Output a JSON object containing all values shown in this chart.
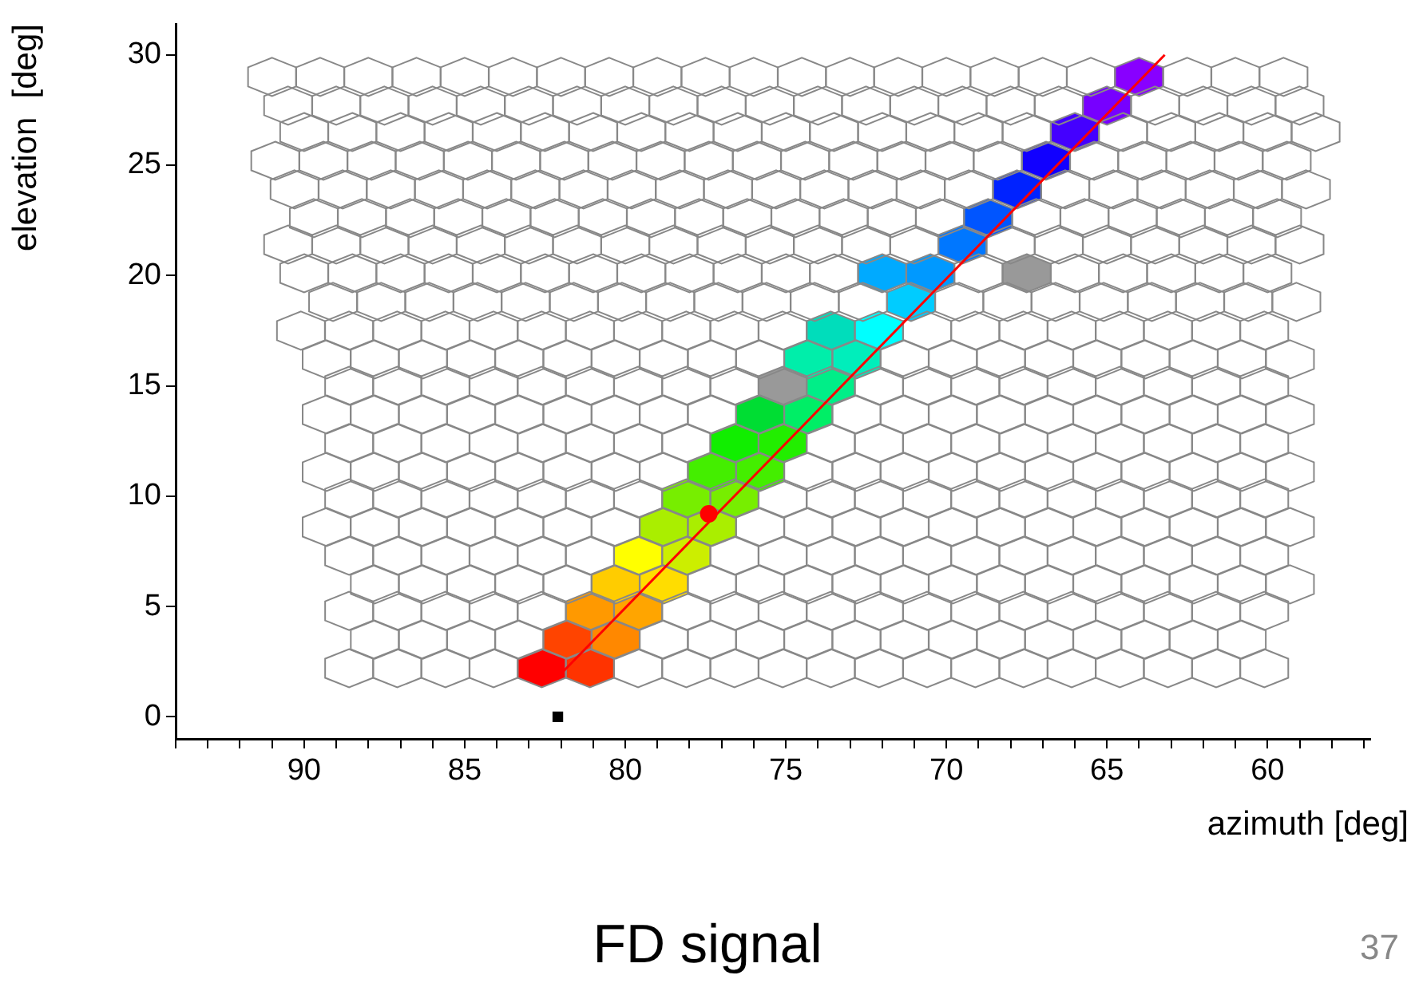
{
  "chart_data": {
    "type": "scatter",
    "xlabel": "azimuth  [deg]",
    "ylabel": "elevation  [deg]",
    "xlim": [
      94,
      56.8
    ],
    "ylim": [
      -1,
      31.4
    ],
    "xticks": [
      {
        "value": 94,
        "label": null
      },
      {
        "value": 93,
        "label": null
      },
      {
        "value": 92,
        "label": null
      },
      {
        "value": 91,
        "label": null
      },
      90,
      {
        "value": 89,
        "label": null
      },
      {
        "value": 88,
        "label": null
      },
      {
        "value": 87,
        "label": null
      },
      {
        "value": 86,
        "label": null
      },
      85,
      {
        "value": 84,
        "label": null
      },
      {
        "value": 83,
        "label": null
      },
      {
        "value": 82,
        "label": null
      },
      {
        "value": 81,
        "label": null
      },
      80,
      {
        "value": 79,
        "label": null
      },
      {
        "value": 78,
        "label": null
      },
      {
        "value": 77,
        "label": null
      },
      {
        "value": 76,
        "label": null
      },
      75,
      {
        "value": 74,
        "label": null
      },
      {
        "value": 73,
        "label": null
      },
      {
        "value": 72,
        "label": null
      },
      {
        "value": 71,
        "label": null
      },
      70,
      {
        "value": 69,
        "label": null
      },
      {
        "value": 68,
        "label": null
      },
      {
        "value": 67,
        "label": null
      },
      {
        "value": 66,
        "label": null
      },
      65,
      {
        "value": 64,
        "label": null
      },
      {
        "value": 63,
        "label": null
      },
      {
        "value": 62,
        "label": null
      },
      {
        "value": 61,
        "label": null
      },
      60,
      {
        "value": 59,
        "label": null
      },
      {
        "value": 58,
        "label": null
      },
      {
        "value": 57,
        "label": null
      }
    ],
    "yticks": [
      0,
      5,
      10,
      15,
      20,
      25,
      30
    ],
    "grid": false,
    "legend": false,
    "series": [
      {
        "type": "scatter",
        "color": "#ffffff",
        "x": [
          88.6,
          87.1,
          85.6,
          84.1,
          79.6,
          78.1,
          76.6,
          75.1,
          73.6,
          72.1,
          70.6,
          69.1,
          67.6,
          66.1,
          64.6,
          63.1,
          61.6,
          60.1,
          87.8,
          86.3,
          84.8,
          83.3,
          78.8,
          77.3,
          75.8,
          74.3,
          72.8,
          71.3,
          69.8,
          68.3,
          66.8,
          65.3,
          63.8,
          62.3,
          60.8,
          88.6,
          87.1,
          85.6,
          84.1,
          82.6,
          78.1,
          76.6,
          75.1,
          73.6,
          72.1,
          70.6,
          69.1,
          67.6,
          66.1,
          64.6,
          63.1,
          61.6,
          60.1,
          87.8,
          86.3,
          84.8,
          83.3,
          81.8,
          77.3,
          75.8,
          74.3,
          72.8,
          71.3,
          69.8,
          68.3,
          66.8,
          65.3,
          63.8,
          62.3,
          60.8,
          59.3,
          88.6,
          87.1,
          85.6,
          84.1,
          82.6,
          81.1,
          76.6,
          75.1,
          73.6,
          72.1,
          70.6,
          69.1,
          67.6,
          66.1,
          64.6,
          63.1,
          61.6,
          60.1,
          89.3,
          87.8,
          86.3,
          84.8,
          83.3,
          81.8,
          80.3,
          75.8,
          74.3,
          72.8,
          71.3,
          69.8,
          68.3,
          66.8,
          65.3,
          63.8,
          62.3,
          60.8,
          59.3,
          88.6,
          87.1,
          85.6,
          84.1,
          82.6,
          81.1,
          79.6,
          75.1,
          73.6,
          72.1,
          70.6,
          69.1,
          67.6,
          66.1,
          64.6,
          63.1,
          61.6,
          60.1,
          89.3,
          87.8,
          86.3,
          84.8,
          83.3,
          81.8,
          80.3,
          78.8,
          74.3,
          72.8,
          71.3,
          69.8,
          68.3,
          66.8,
          65.3,
          63.8,
          62.3,
          60.8,
          59.3,
          88.6,
          87.1,
          85.6,
          84.1,
          82.6,
          81.1,
          79.6,
          78.1,
          73.6,
          72.1,
          70.6,
          69.1,
          67.6,
          66.1,
          64.6,
          63.1,
          61.6,
          60.1,
          89.3,
          87.8,
          86.3,
          84.8,
          83.3,
          81.8,
          80.3,
          78.8,
          77.3,
          72.8,
          71.3,
          69.8,
          68.3,
          66.8,
          65.3,
          63.8,
          62.3,
          60.8,
          59.3,
          88.6,
          87.1,
          85.6,
          84.1,
          82.6,
          81.1,
          79.6,
          78.1,
          76.6,
          72.1,
          70.6,
          69.1,
          67.6,
          66.1,
          64.6,
          63.1,
          61.6,
          60.1,
          89.3,
          87.8,
          86.3,
          84.8,
          83.3,
          81.8,
          80.3,
          78.8,
          77.3,
          75.8,
          71.3,
          69.8,
          68.3,
          66.8,
          65.3,
          63.8,
          62.3,
          60.8,
          59.3,
          90.1,
          88.6,
          87.1,
          85.6,
          84.1,
          82.6,
          81.1,
          79.6,
          78.1,
          76.6,
          75.1,
          70.6,
          69.1,
          67.6,
          66.1,
          64.6,
          63.1,
          61.6,
          60.1,
          89.1,
          87.6,
          86.1,
          84.6,
          83.1,
          81.6,
          80.1,
          78.6,
          77.1,
          75.6,
          74.1,
          72.6,
          69.6,
          68.1,
          66.6,
          65.1,
          63.6,
          62.1,
          60.6,
          59.1,
          90,
          88.5,
          87,
          85.5,
          84,
          82.5,
          81,
          79.5,
          78,
          76.5,
          75,
          73.5,
          69,
          66,
          64.5,
          63,
          61.5,
          60,
          90.5,
          89,
          87.5,
          86,
          84.5,
          83,
          81.5,
          80,
          78.5,
          77,
          75.5,
          74,
          72.5,
          71,
          68,
          66.5,
          65,
          63.5,
          62,
          60.5,
          59,
          89.7,
          88.2,
          86.7,
          85.2,
          83.7,
          82.2,
          80.7,
          79.2,
          77.7,
          76.2,
          74.7,
          73.2,
          71.7,
          70.2,
          67.2,
          65.7,
          64.2,
          62.7,
          61.2,
          59.7,
          90.3,
          88.8,
          87.3,
          85.8,
          84.3,
          82.8,
          81.3,
          79.8,
          78.3,
          76.8,
          75.3,
          73.8,
          72.3,
          70.8,
          69.3,
          66.3,
          64.8,
          63.3,
          61.8,
          60.3,
          58.8,
          90.9,
          89.4,
          87.9,
          86.4,
          84.9,
          83.4,
          81.9,
          80.4,
          78.9,
          77.4,
          75.9,
          74.4,
          72.9,
          71.4,
          69.9,
          68.4,
          65.4,
          63.9,
          62.4,
          60.9,
          59.4,
          90,
          88.5,
          87,
          85.5,
          84,
          82.5,
          81,
          79.5,
          78,
          76.5,
          75,
          73.5,
          72,
          70.5,
          69,
          67.5,
          64.5,
          63,
          61.5,
          60,
          58.5,
          90.5,
          89,
          87.5,
          86,
          84.5,
          83,
          81.5,
          80,
          78.5,
          77,
          75.5,
          74,
          72.5,
          71,
          69.5,
          68,
          66.5,
          63.5,
          62,
          60.5,
          59,
          91,
          89.5,
          88,
          86.5,
          85,
          83.5,
          82,
          80.5,
          79,
          77.5,
          76,
          74.5,
          73,
          71.5,
          70,
          68.5,
          67,
          65.5,
          62.5,
          61,
          59.5
        ],
        "values": [
          2.2,
          2.2,
          2.2,
          2.2,
          2.2,
          2.2,
          2.2,
          2.2,
          2.2,
          2.2,
          2.2,
          2.2,
          2.2,
          2.2,
          2.2,
          2.2,
          2.2,
          2.2,
          3.5,
          3.5,
          3.5,
          3.5,
          3.5,
          3.5,
          3.5,
          3.5,
          3.5,
          3.5,
          3.5,
          3.5,
          3.5,
          3.5,
          3.5,
          3.5,
          3.5,
          4.8,
          4.8,
          4.8,
          4.8,
          4.8,
          4.8,
          4.8,
          4.8,
          4.8,
          4.8,
          4.8,
          4.8,
          4.8,
          4.8,
          4.8,
          4.8,
          4.8,
          4.8,
          6.0,
          6.0,
          6.0,
          6.0,
          6.0,
          6.0,
          6.0,
          6.0,
          6.0,
          6.0,
          6.0,
          6.0,
          6.0,
          6.0,
          6.0,
          6.0,
          6.0,
          6.0,
          7.3,
          7.3,
          7.3,
          7.3,
          7.3,
          7.3,
          7.3,
          7.3,
          7.3,
          7.3,
          7.3,
          7.3,
          7.3,
          7.3,
          7.3,
          7.3,
          7.3,
          7.3,
          8.6,
          8.6,
          8.6,
          8.6,
          8.6,
          8.6,
          8.6,
          8.6,
          8.6,
          8.6,
          8.6,
          8.6,
          8.6,
          8.6,
          8.6,
          8.6,
          8.6,
          8.6,
          8.6,
          9.9,
          9.9,
          9.9,
          9.9,
          9.9,
          9.9,
          9.9,
          9.9,
          9.9,
          9.9,
          9.9,
          9.9,
          9.9,
          9.9,
          9.9,
          9.9,
          9.9,
          9.9,
          11.1,
          11.1,
          11.1,
          11.1,
          11.1,
          11.1,
          11.1,
          11.1,
          11.1,
          11.1,
          11.1,
          11.1,
          11.1,
          11.1,
          11.1,
          11.1,
          11.1,
          11.1,
          11.1,
          12.4,
          12.4,
          12.4,
          12.4,
          12.4,
          12.4,
          12.4,
          12.4,
          12.4,
          12.4,
          12.4,
          12.4,
          12.4,
          12.4,
          12.4,
          12.4,
          12.4,
          12.4,
          13.7,
          13.7,
          13.7,
          13.7,
          13.7,
          13.7,
          13.7,
          13.7,
          13.7,
          13.7,
          13.7,
          13.7,
          13.7,
          13.7,
          13.7,
          13.7,
          13.7,
          13.7,
          13.7,
          15.0,
          15.0,
          15.0,
          15.0,
          15.0,
          15.0,
          15.0,
          15.0,
          15.0,
          15.0,
          15.0,
          15.0,
          15.0,
          15.0,
          15.0,
          15.0,
          15.0,
          15.0,
          16.2,
          16.2,
          16.2,
          16.2,
          16.2,
          16.2,
          16.2,
          16.2,
          16.2,
          16.2,
          16.2,
          16.2,
          16.2,
          16.2,
          16.2,
          16.2,
          16.2,
          16.2,
          16.2,
          17.5,
          17.5,
          17.5,
          17.5,
          17.5,
          17.5,
          17.5,
          17.5,
          17.5,
          17.5,
          17.5,
          17.5,
          17.5,
          17.5,
          17.5,
          17.5,
          17.5,
          17.5,
          17.5,
          18.8,
          18.8,
          18.8,
          18.8,
          18.8,
          18.8,
          18.8,
          18.8,
          18.8,
          18.8,
          18.8,
          18.8,
          18.8,
          18.8,
          18.8,
          18.8,
          18.8,
          18.8,
          18.8,
          18.8,
          20.1,
          20.1,
          20.1,
          20.1,
          20.1,
          20.1,
          20.1,
          20.1,
          20.1,
          20.1,
          20.1,
          20.1,
          20.1,
          20.1,
          20.1,
          20.1,
          20.1,
          20.1,
          21.4,
          21.4,
          21.4,
          21.4,
          21.4,
          21.4,
          21.4,
          21.4,
          21.4,
          21.4,
          21.4,
          21.4,
          21.4,
          21.4,
          21.4,
          21.4,
          21.4,
          21.4,
          21.4,
          21.4,
          21.4,
          22.6,
          22.6,
          22.6,
          22.6,
          22.6,
          22.6,
          22.6,
          22.6,
          22.6,
          22.6,
          22.6,
          22.6,
          22.6,
          22.6,
          22.6,
          22.6,
          22.6,
          22.6,
          22.6,
          22.6,
          23.9,
          23.9,
          23.9,
          23.9,
          23.9,
          23.9,
          23.9,
          23.9,
          23.9,
          23.9,
          23.9,
          23.9,
          23.9,
          23.9,
          23.9,
          23.9,
          23.9,
          23.9,
          23.9,
          23.9,
          23.9,
          25.2,
          25.2,
          25.2,
          25.2,
          25.2,
          25.2,
          25.2,
          25.2,
          25.2,
          25.2,
          25.2,
          25.2,
          25.2,
          25.2,
          25.2,
          25.2,
          25.2,
          25.2,
          25.2,
          25.2,
          25.2,
          26.5,
          26.5,
          26.5,
          26.5,
          26.5,
          26.5,
          26.5,
          26.5,
          26.5,
          26.5,
          26.5,
          26.5,
          26.5,
          26.5,
          26.5,
          26.5,
          26.5,
          26.5,
          26.5,
          26.5,
          26.5,
          27.7,
          27.7,
          27.7,
          27.7,
          27.7,
          27.7,
          27.7,
          27.7,
          27.7,
          27.7,
          27.7,
          27.7,
          27.7,
          27.7,
          27.7,
          27.7,
          27.7,
          27.7,
          27.7,
          27.7,
          27.7,
          29.0,
          29.0,
          29.0,
          29.0,
          29.0,
          29.0,
          29.0,
          29.0,
          29.0,
          29.0,
          29.0,
          29.0,
          29.0,
          29.0,
          29.0,
          29.0,
          29.0,
          29.0,
          29.0,
          29.0,
          29.0
        ]
      },
      {
        "type": "scatter",
        "x": [
          82.6,
          81.1,
          81.8,
          80.3,
          81.1,
          79.6,
          80.3,
          78.8,
          79.6,
          78.1,
          78.8,
          77.3,
          78.1,
          76.6,
          77.3,
          75.8,
          76.6,
          75.1,
          75.8,
          74.3,
          73.6,
          74.3,
          72.8,
          73.6,
          72.1,
          71.1,
          72.0,
          70.5,
          69.5,
          68.7,
          67.8,
          66.9,
          66.0,
          65.0,
          64.0
        ],
        "values": [
          2.2,
          2.2,
          3.5,
          3.5,
          4.8,
          4.8,
          6.0,
          6.0,
          7.3,
          7.3,
          8.6,
          8.6,
          9.9,
          9.9,
          11.1,
          11.1,
          12.4,
          12.4,
          13.7,
          13.7,
          15.0,
          16.2,
          16.2,
          17.5,
          17.5,
          18.8,
          20.1,
          20.1,
          21.4,
          22.6,
          23.9,
          25.2,
          26.5,
          27.7,
          29.0
        ],
        "colors": [
          "#ff0000",
          "#ff3300",
          "#ff4400",
          "#ff8800",
          "#ff9900",
          "#ffa500",
          "#ffcc00",
          "#ffdd00",
          "#ffff00",
          "#ccee00",
          "#aaee00",
          "#aaee00",
          "#77ee00",
          "#77ee00",
          "#44ee00",
          "#44ee00",
          "#11ee00",
          "#22ee00",
          "#00dd33",
          "#00ee66",
          "#00ee88",
          "#00eeaa",
          "#00eebb",
          "#00ddbb",
          "#00ffff",
          "#00ccff",
          "#00aaff",
          "#0099ff",
          "#0077ff",
          "#0055ff",
          "#0022ff",
          "#1100ff",
          "#4400ff",
          "#7700ff",
          "#8800ff"
        ]
      },
      {
        "type": "scatter",
        "x": [
          75.1,
          67.5
        ],
        "values": [
          15.0,
          20.1
        ],
        "color": "#999999"
      },
      {
        "type": "line",
        "x": [
          82.1,
          63.2
        ],
        "values": [
          1.8,
          30.0
        ],
        "color": "#ff0000",
        "marker": "none"
      },
      {
        "type": "scatter",
        "x": [
          77.4
        ],
        "values": [
          9.2
        ],
        "color": "#ff0000",
        "marker": "circle"
      },
      {
        "type": "scatter",
        "x": [
          82.1
        ],
        "values": [
          0
        ],
        "color": "#000000",
        "marker": "square"
      }
    ],
    "annotations": [
      "FD signal",
      "37"
    ]
  }
}
